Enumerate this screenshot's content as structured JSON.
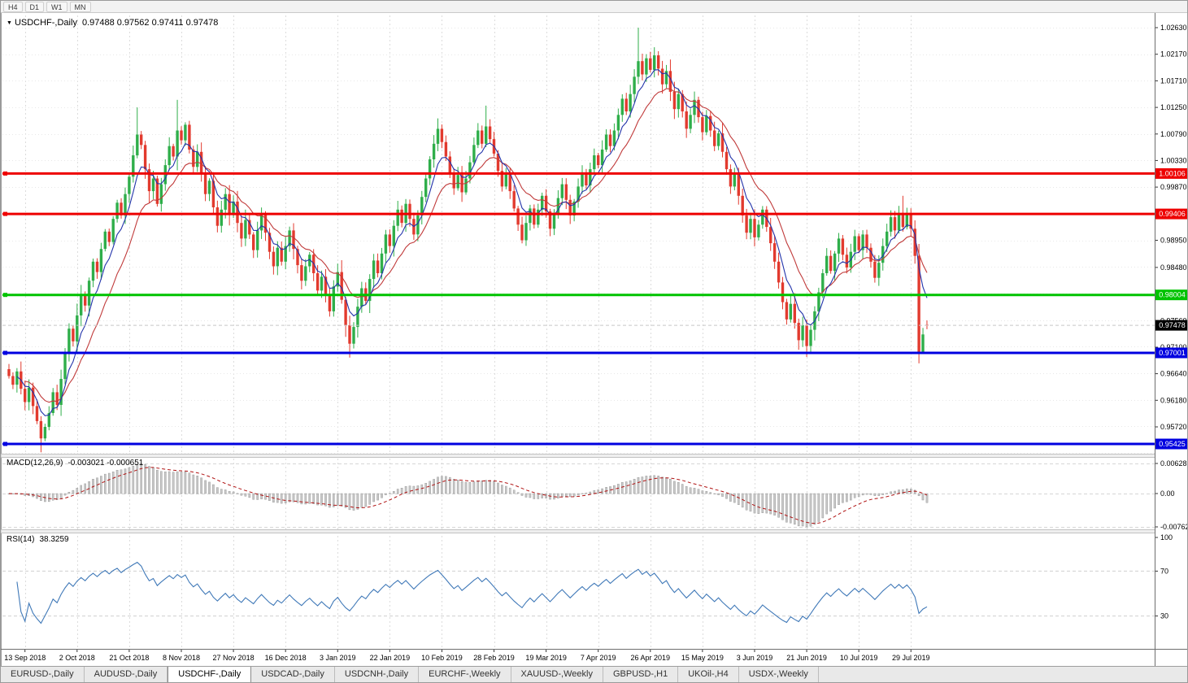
{
  "toolbar": {
    "timeframes": [
      "H4",
      "D1",
      "W1",
      "MN"
    ]
  },
  "chart": {
    "symbol_title": "USDCHF-,Daily",
    "ohlc_text": "0.97488 0.97562 0.97411 0.97478",
    "open": "0.97488",
    "high": "0.97562",
    "low": "0.97411",
    "close": "0.97478"
  },
  "price_axis": {
    "ticks": [
      "1.02630",
      "1.02170",
      "1.01710",
      "1.01250",
      "1.00790",
      "1.00330",
      "0.99870",
      "0.98950",
      "0.98480",
      "0.97560",
      "0.97100",
      "0.96640",
      "0.96180",
      "0.95720"
    ],
    "boxed_labels": [
      {
        "value": "1.00106",
        "price": 1.00106,
        "bg": "#ee0000"
      },
      {
        "value": "0.99406",
        "price": 0.99406,
        "bg": "#ee0000"
      },
      {
        "value": "0.98004",
        "price": 0.98004,
        "bg": "#00c300"
      },
      {
        "value": "0.97478",
        "price": 0.97478,
        "bg": "#000000"
      },
      {
        "value": "0.97001",
        "price": 0.97001,
        "bg": "#0000e0"
      },
      {
        "value": "0.95425",
        "price": 0.95425,
        "bg": "#0000e0"
      }
    ]
  },
  "hlines": [
    {
      "price": 1.00106,
      "color": "#ee0000",
      "width": 3
    },
    {
      "price": 0.99406,
      "color": "#ee0000",
      "width": 3
    },
    {
      "price": 0.98004,
      "color": "#00c300",
      "width": 3
    },
    {
      "price": 0.97001,
      "color": "#0000e0",
      "width": 3
    },
    {
      "price": 0.95425,
      "color": "#0000e0",
      "width": 3
    }
  ],
  "current_price": 0.97478,
  "date_axis": [
    "13 Sep 2018",
    "2 Oct 2018",
    "21 Oct 2018",
    "8 Nov 2018",
    "27 Nov 2018",
    "16 Dec 2018",
    "3 Jan 2019",
    "22 Jan 2019",
    "10 Feb 2019",
    "28 Feb 2019",
    "19 Mar 2019",
    "7 Apr 2019",
    "26 Apr 2019",
    "15 May 2019",
    "3 Jun 2019",
    "21 Jun 2019",
    "10 Jul 2019",
    "29 Jul 2019"
  ],
  "indicators": {
    "macd": {
      "label": "MACD(12,26,9)",
      "values_text": "-0.003021 -0.000651",
      "axis": [
        "0.006286",
        "0.00",
        "-0.00762"
      ]
    },
    "rsi": {
      "label": "RSI(14)",
      "value_text": "38.3259",
      "axis": [
        "100",
        "70",
        "30"
      ]
    }
  },
  "tabs": {
    "active_index": 2,
    "items": [
      "EURUSD-,Daily",
      "AUDUSD-,Daily",
      "USDCHF-,Daily",
      "USDCAD-,Daily",
      "USDCNH-,Daily",
      "EURCHF-,Weekly",
      "XAUUSD-,Weekly",
      "GBPUSD-,H1",
      "UKOil-,H4",
      "USDX-,Weekly"
    ]
  },
  "colors": {
    "bull": "#2fae4a",
    "bear": "#e23a2e",
    "ma_fast": "#2233aa",
    "ma_slow": "#c03a3a",
    "macd_hist": "#c8c8c8",
    "macd_hist_stroke": "#8f8f8f",
    "macd_signal": "#b01212",
    "rsi_line": "#4079b8",
    "grid": "#dcdcdc"
  },
  "chart_data": {
    "type": "candlestick",
    "symbol": "USDCHF",
    "timeframe": "Daily",
    "title": "USDCHF-,Daily",
    "price_range": [
      0.9526,
      1.0263
    ],
    "first_label_index": 4,
    "date_labels_every": 13,
    "first_open": 0.9672,
    "closes": [
      0.966,
      0.9645,
      0.9668,
      0.9638,
      0.9615,
      0.964,
      0.9608,
      0.9582,
      0.9552,
      0.9572,
      0.9596,
      0.9632,
      0.961,
      0.9655,
      0.97,
      0.9742,
      0.972,
      0.9765,
      0.98,
      0.9782,
      0.9825,
      0.9858,
      0.984,
      0.988,
      0.991,
      0.9892,
      0.9932,
      0.996,
      0.9938,
      0.9975,
      1.0005,
      1.0042,
      1.0078,
      1.006,
      1.0018,
      0.998,
      1.0002,
      0.9958,
      0.9992,
      1.0025,
      1.0058,
      1.004,
      1.0085,
      1.0068,
      1.0095,
      1.0052,
      1.0022,
      1.0048,
      1.001,
      0.9975,
      0.9998,
      0.9952,
      0.992,
      0.9948,
      0.9975,
      0.994,
      0.9962,
      0.9925,
      0.9898,
      0.993,
      0.9905,
      0.9878,
      0.9912,
      0.994,
      0.9908,
      0.9875,
      0.985,
      0.9882,
      0.9858,
      0.9885,
      0.9912,
      0.988,
      0.9852,
      0.9825,
      0.985,
      0.987,
      0.9838,
      0.9808,
      0.9832,
      0.98,
      0.9772,
      0.9815,
      0.984,
      0.9792,
      0.9748,
      0.9716,
      0.9745,
      0.978,
      0.9812,
      0.979,
      0.9828,
      0.986,
      0.9838,
      0.9872,
      0.9905,
      0.9885,
      0.992,
      0.9948,
      0.9925,
      0.9958,
      0.9932,
      0.9905,
      0.9938,
      0.997,
      1.0002,
      1.0035,
      1.0062,
      1.0088,
      1.0065,
      1.004,
      1.0012,
      0.9985,
      1.0008,
      0.9978,
      1.0002,
      1.003,
      1.006,
      1.0085,
      1.0062,
      1.0092,
      1.007,
      1.0045,
      1.0015,
      0.9988,
      1.001,
      0.998,
      0.995,
      0.9922,
      0.9895,
      0.9925,
      0.995,
      0.9922,
      0.9948,
      0.9972,
      0.9945,
      0.9915,
      0.994,
      0.9968,
      0.9992,
      0.9965,
      0.9938,
      0.9962,
      0.9988,
      1.0012,
      0.999,
      1.0018,
      1.0042,
      1.0025,
      1.0052,
      1.0078,
      1.0058,
      1.0085,
      1.0112,
      1.014,
      1.0118,
      1.0148,
      1.0178,
      1.0205,
      1.0182,
      1.021,
      1.019,
      1.0215,
      1.0192,
      1.0165,
      1.0188,
      1.0152,
      1.0122,
      1.0148,
      1.0118,
      1.0088,
      1.0112,
      1.0138,
      1.0108,
      1.0082,
      1.011,
      1.0085,
      1.0058,
      1.008,
      1.0048,
      1.0018,
      0.9988,
      1.001,
      0.9972,
      0.9938,
      0.9908,
      0.9932,
      0.99,
      0.9922,
      0.9948,
      0.9918,
      0.989,
      0.9858,
      0.9822,
      0.9788,
      0.9758,
      0.9785,
      0.9752,
      0.9722,
      0.9748,
      0.9712,
      0.974,
      0.9772,
      0.9805,
      0.9838,
      0.9868,
      0.9842,
      0.9872,
      0.9898,
      0.987,
      0.9848,
      0.9875,
      0.9902,
      0.9878,
      0.9905,
      0.9882,
      0.9858,
      0.983,
      0.9856,
      0.9885,
      0.991,
      0.9935,
      0.9912,
      0.994,
      0.9918,
      0.9942,
      0.9915,
      0.9868,
      0.9702,
      0.9732,
      0.97478
    ],
    "overrides": {
      "8": {
        "low": 0.9528
      },
      "32": {
        "high": 1.0125
      },
      "42": {
        "high": 1.0138
      },
      "85": {
        "low": 0.9692
      },
      "107": {
        "high": 1.0106
      },
      "119": {
        "high": 1.0128
      },
      "157": {
        "high": 1.0263
      },
      "199": {
        "low": 0.9693
      },
      "223": {
        "high": 0.9972
      },
      "227": {
        "low": 0.9682
      },
      "228": {
        "low": 0.9698
      },
      "229": {
        "open": 0.97488,
        "high": 0.97562,
        "low": 0.97411
      }
    }
  }
}
